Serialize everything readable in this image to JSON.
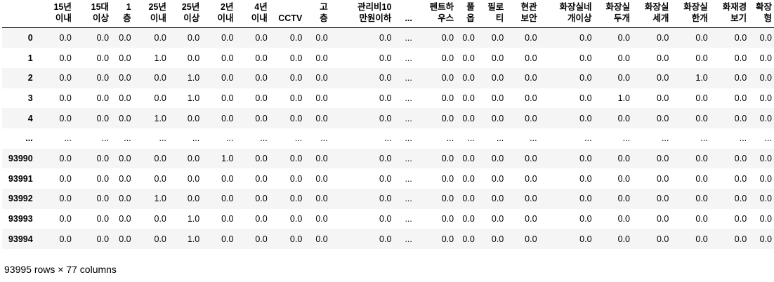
{
  "columns": [
    "15년\n이내",
    "15대\n이상",
    "1\n층",
    "25년\n이내",
    "25년\n이상",
    "2년\n이내",
    "4년\n이내",
    "CCTV",
    "고\n층",
    "관리비10\n만원이하",
    "...",
    "펜트하\n우스",
    "풀\n옵",
    "필로\n티",
    "현관\n보안",
    "화장실네\n개이상",
    "화장실\n두개",
    "화장실\n세개",
    "화장실\n한개",
    "화재경\n보기",
    "확장\n형"
  ],
  "rows": [
    {
      "index": "0",
      "cells": [
        "0.0",
        "0.0",
        "0.0",
        "0.0",
        "0.0",
        "0.0",
        "0.0",
        "0.0",
        "0.0",
        "0.0",
        "...",
        "0.0",
        "0.0",
        "0.0",
        "0.0",
        "0.0",
        "0.0",
        "0.0",
        "0.0",
        "0.0",
        "0.0"
      ]
    },
    {
      "index": "1",
      "cells": [
        "0.0",
        "0.0",
        "0.0",
        "1.0",
        "0.0",
        "0.0",
        "0.0",
        "0.0",
        "0.0",
        "0.0",
        "...",
        "0.0",
        "0.0",
        "0.0",
        "0.0",
        "0.0",
        "0.0",
        "0.0",
        "0.0",
        "0.0",
        "0.0"
      ]
    },
    {
      "index": "2",
      "cells": [
        "0.0",
        "0.0",
        "0.0",
        "0.0",
        "1.0",
        "0.0",
        "0.0",
        "0.0",
        "0.0",
        "0.0",
        "...",
        "0.0",
        "0.0",
        "0.0",
        "0.0",
        "0.0",
        "0.0",
        "0.0",
        "1.0",
        "0.0",
        "0.0"
      ]
    },
    {
      "index": "3",
      "cells": [
        "0.0",
        "0.0",
        "0.0",
        "0.0",
        "1.0",
        "0.0",
        "0.0",
        "0.0",
        "0.0",
        "0.0",
        "...",
        "0.0",
        "0.0",
        "0.0",
        "0.0",
        "0.0",
        "1.0",
        "0.0",
        "0.0",
        "0.0",
        "0.0"
      ]
    },
    {
      "index": "4",
      "cells": [
        "0.0",
        "0.0",
        "0.0",
        "1.0",
        "0.0",
        "0.0",
        "0.0",
        "0.0",
        "0.0",
        "0.0",
        "...",
        "0.0",
        "0.0",
        "0.0",
        "0.0",
        "0.0",
        "0.0",
        "0.0",
        "0.0",
        "0.0",
        "0.0"
      ]
    },
    {
      "index": "...",
      "cells": [
        "...",
        "...",
        "...",
        "...",
        "...",
        "...",
        "...",
        "...",
        "...",
        "...",
        "...",
        "...",
        "...",
        "...",
        "...",
        "...",
        "...",
        "...",
        "...",
        "...",
        "..."
      ]
    },
    {
      "index": "93990",
      "cells": [
        "0.0",
        "0.0",
        "0.0",
        "0.0",
        "0.0",
        "1.0",
        "0.0",
        "0.0",
        "0.0",
        "0.0",
        "...",
        "0.0",
        "0.0",
        "0.0",
        "0.0",
        "0.0",
        "0.0",
        "0.0",
        "0.0",
        "0.0",
        "0.0"
      ]
    },
    {
      "index": "93991",
      "cells": [
        "0.0",
        "0.0",
        "0.0",
        "0.0",
        "0.0",
        "0.0",
        "0.0",
        "0.0",
        "0.0",
        "0.0",
        "...",
        "0.0",
        "0.0",
        "0.0",
        "0.0",
        "0.0",
        "0.0",
        "0.0",
        "0.0",
        "0.0",
        "0.0"
      ]
    },
    {
      "index": "93992",
      "cells": [
        "0.0",
        "0.0",
        "0.0",
        "1.0",
        "0.0",
        "0.0",
        "0.0",
        "0.0",
        "0.0",
        "0.0",
        "...",
        "0.0",
        "0.0",
        "0.0",
        "0.0",
        "0.0",
        "0.0",
        "0.0",
        "0.0",
        "0.0",
        "0.0"
      ]
    },
    {
      "index": "93993",
      "cells": [
        "0.0",
        "0.0",
        "0.0",
        "0.0",
        "1.0",
        "0.0",
        "0.0",
        "0.0",
        "0.0",
        "0.0",
        "...",
        "0.0",
        "0.0",
        "0.0",
        "0.0",
        "0.0",
        "0.0",
        "0.0",
        "0.0",
        "0.0",
        "0.0"
      ]
    },
    {
      "index": "93994",
      "cells": [
        "0.0",
        "0.0",
        "0.0",
        "0.0",
        "1.0",
        "0.0",
        "0.0",
        "0.0",
        "0.0",
        "0.0",
        "...",
        "0.0",
        "0.0",
        "0.0",
        "0.0",
        "0.0",
        "0.0",
        "0.0",
        "0.0",
        "0.0",
        "0.0"
      ]
    }
  ],
  "footer": "93995 rows × 77 columns"
}
